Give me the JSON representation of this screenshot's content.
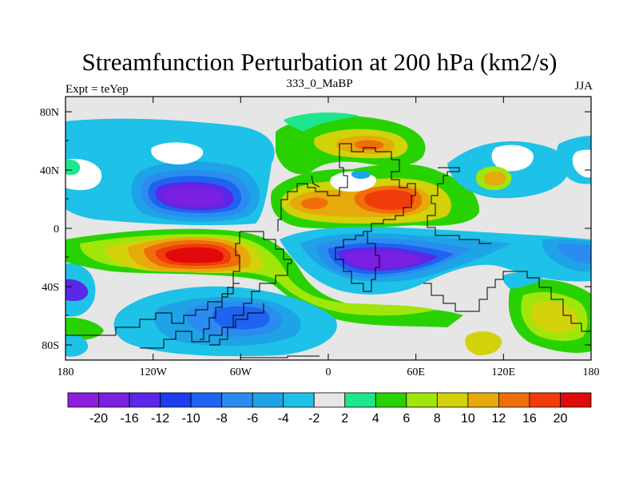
{
  "title": "Streamfunction Perturbation at 200 hPa (km2/s)",
  "left_label": "Expt = teYep",
  "center_label": "333_0_MaBP",
  "right_label": "JJA",
  "map": {
    "lat_ticks": [
      "80N",
      "40N",
      "0",
      "40S",
      "80S"
    ],
    "lon_ticks": [
      "180",
      "120W",
      "60W",
      "0",
      "60E",
      "120E",
      "180"
    ]
  },
  "colorbar": {
    "colors": [
      "#8c1ee0",
      "#7b1fe0",
      "#5a28e6",
      "#1e3cf0",
      "#1e64f0",
      "#2b8cf0",
      "#1ea4e6",
      "#1ec1e8",
      "#e6e6e6",
      "#1ee68c",
      "#28d200",
      "#a0e60a",
      "#d2d20a",
      "#e6aa0a",
      "#f06e0a",
      "#f03c0a",
      "#e00a0a"
    ],
    "labels": [
      "-20",
      "-16",
      "-12",
      "-10",
      "-8",
      "-6",
      "-4",
      "-2",
      "2",
      "4",
      "6",
      "8",
      "10",
      "12",
      "16",
      "20"
    ]
  }
}
